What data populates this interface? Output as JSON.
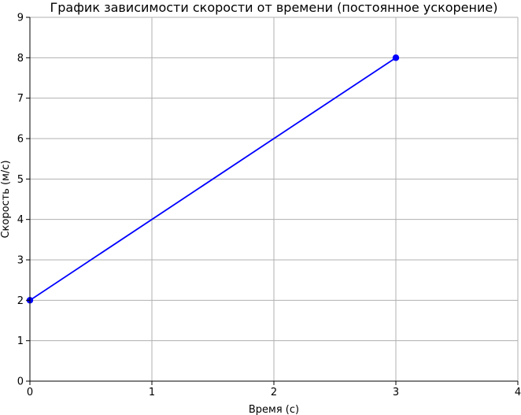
{
  "chart_data": {
    "type": "line",
    "title": "График зависимости скорости от времени (постоянное ускорение)",
    "xlabel": "Время (с)",
    "ylabel": "Скорость (м/с)",
    "xlim": [
      0,
      4
    ],
    "ylim": [
      0,
      9
    ],
    "xticks": [
      0,
      1,
      2,
      3,
      4
    ],
    "yticks": [
      0,
      1,
      2,
      3,
      4,
      5,
      6,
      7,
      8,
      9
    ],
    "grid": true,
    "series": [
      {
        "x": [
          0,
          3
        ],
        "y": [
          2,
          8
        ],
        "color": "#0000ff",
        "marker": "circle"
      }
    ]
  }
}
